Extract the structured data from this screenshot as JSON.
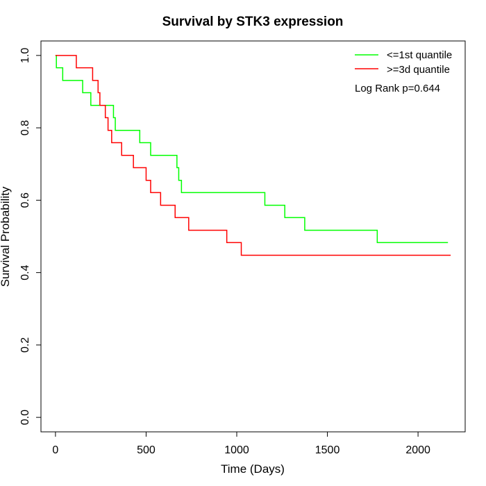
{
  "chart_data": {
    "type": "line",
    "title": "Survival by STK3 expression",
    "xlabel": "Time (Days)",
    "ylabel": "Survival Probability",
    "xlim": [
      -80,
      2260
    ],
    "ylim": [
      -0.04,
      1.04
    ],
    "x_ticks": [
      0,
      500,
      1000,
      1500,
      2000
    ],
    "y_ticks": [
      0.0,
      0.2,
      0.4,
      0.6,
      0.8,
      1.0
    ],
    "x_tick_labels": [
      "0",
      "500",
      "1000",
      "1500",
      "2000"
    ],
    "y_tick_labels": [
      "0.0",
      "0.2",
      "0.4",
      "0.6",
      "0.8",
      "1.0"
    ],
    "legend_position": "top-right",
    "annotation": "Log Rank p=0.644",
    "step": true,
    "series": [
      {
        "name": "<=1st quantile",
        "color": "#00ff00",
        "x": [
          0,
          5,
          40,
          150,
          195,
          320,
          330,
          465,
          525,
          670,
          680,
          695,
          1155,
          1265,
          1375,
          1775,
          2165
        ],
        "y": [
          1.0,
          0.966,
          0.931,
          0.897,
          0.862,
          0.828,
          0.793,
          0.759,
          0.724,
          0.69,
          0.655,
          0.621,
          0.586,
          0.552,
          0.517,
          0.483,
          0.483
        ]
      },
      {
        "name": ">=3d quantile",
        "color": "#ff0000",
        "x": [
          0,
          115,
          205,
          235,
          245,
          275,
          290,
          310,
          365,
          430,
          500,
          525,
          580,
          660,
          735,
          945,
          1025,
          2180
        ],
        "y": [
          1.0,
          0.966,
          0.931,
          0.897,
          0.862,
          0.828,
          0.793,
          0.759,
          0.724,
          0.69,
          0.655,
          0.621,
          0.586,
          0.552,
          0.517,
          0.483,
          0.448,
          0.448
        ]
      }
    ]
  }
}
